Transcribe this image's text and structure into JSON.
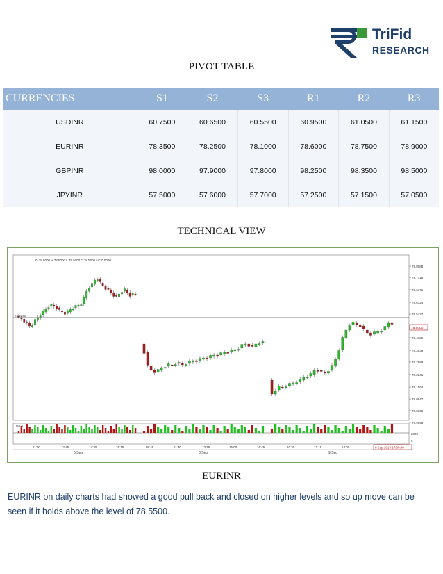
{
  "logo": {
    "line1": "TriFid",
    "line2": "RESEARCH"
  },
  "pivot": {
    "title": "PIVOT TABLE",
    "headers": [
      "CURRENCIES",
      "S1",
      "S2",
      "S3",
      "R1",
      "R2",
      "R3"
    ],
    "rows": [
      [
        "USDINR",
        "60.7500",
        "60.6500",
        "60.5500",
        "60.9500",
        "61.0500",
        "61.1500"
      ],
      [
        "EURINR",
        "78.3500",
        "78.2500",
        "78.1000",
        "78.6000",
        "78.7500",
        "78.9000"
      ],
      [
        "GBPINR",
        "98.0000",
        "97.9000",
        "97.8000",
        "98.2500",
        "98.3500",
        "98.5000"
      ],
      [
        "JPYINR",
        "57.5000",
        "57.6000",
        "57.7000",
        "57.2500",
        "57.1500",
        "57.0500"
      ]
    ]
  },
  "technical": {
    "title": "TECHNICAL VIEW",
    "chart": {
      "ohlc_label": "O 78.5000  H 78.5000  L 78.5000  C 78.5000  UC 0.0000",
      "price_ticks": [
        "78.8088",
        "78.7418",
        "78.6771",
        "78.6124",
        "78.5477",
        "78.4182",
        "78.3535",
        "78.2888",
        "78.2241",
        "78.1594",
        "78.0947",
        "78.0300",
        "77.9653"
      ],
      "current_price": "78.5000",
      "vol_label": "Vol 0",
      "vol_ticks": [
        "2800",
        "0"
      ],
      "time_ticks": [
        "11:00",
        "12:45",
        "14:30",
        "16:15",
        "09:45",
        "11:30",
        "13:15",
        "15:00",
        "16:45",
        "10:30",
        "12:15",
        "14:00"
      ],
      "date_labels": [
        "5 Sep",
        "8 Sep",
        "9 Sep"
      ],
      "cursor_date": "9 Sep 2014 17:00:00",
      "left_marker": "78.4250"
    }
  },
  "eurinr": {
    "title": "EURINR",
    "text": "EURINR on daily charts had showed a good pull back and closed on higher levels and so up move can be seen if it holds above the level of 78.5500."
  },
  "colors": {
    "header_bg": "#95b3d7",
    "up": "#22c022",
    "down": "#b01818",
    "text_blue": "#1f3f6b"
  }
}
